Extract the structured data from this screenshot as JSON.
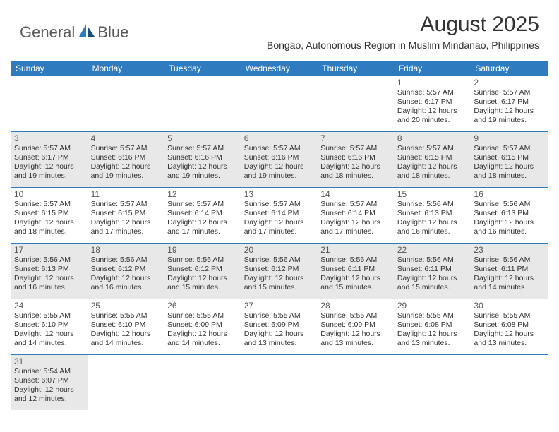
{
  "brand": {
    "name1": "General",
    "name2": "Blue"
  },
  "title": "August 2025",
  "location": "Bongao, Autonomous Region in Muslim Mindanao, Philippines",
  "colors": {
    "header_bg": "#2f7bbf",
    "header_text": "#ffffff",
    "gray_cell": "#e8e8e8",
    "border": "#2f7bbf",
    "body_text": "#333333",
    "logo_text": "#5a5a5a"
  },
  "weekdays": [
    "Sunday",
    "Monday",
    "Tuesday",
    "Wednesday",
    "Thursday",
    "Friday",
    "Saturday"
  ],
  "weeks": [
    [
      null,
      null,
      null,
      null,
      null,
      {
        "n": "1",
        "sr": "Sunrise: 5:57 AM",
        "ss": "Sunset: 6:17 PM",
        "d1": "Daylight: 12 hours",
        "d2": "and 20 minutes."
      },
      {
        "n": "2",
        "sr": "Sunrise: 5:57 AM",
        "ss": "Sunset: 6:17 PM",
        "d1": "Daylight: 12 hours",
        "d2": "and 19 minutes."
      }
    ],
    [
      {
        "n": "3",
        "sr": "Sunrise: 5:57 AM",
        "ss": "Sunset: 6:17 PM",
        "d1": "Daylight: 12 hours",
        "d2": "and 19 minutes."
      },
      {
        "n": "4",
        "sr": "Sunrise: 5:57 AM",
        "ss": "Sunset: 6:16 PM",
        "d1": "Daylight: 12 hours",
        "d2": "and 19 minutes."
      },
      {
        "n": "5",
        "sr": "Sunrise: 5:57 AM",
        "ss": "Sunset: 6:16 PM",
        "d1": "Daylight: 12 hours",
        "d2": "and 19 minutes."
      },
      {
        "n": "6",
        "sr": "Sunrise: 5:57 AM",
        "ss": "Sunset: 6:16 PM",
        "d1": "Daylight: 12 hours",
        "d2": "and 19 minutes."
      },
      {
        "n": "7",
        "sr": "Sunrise: 5:57 AM",
        "ss": "Sunset: 6:16 PM",
        "d1": "Daylight: 12 hours",
        "d2": "and 18 minutes."
      },
      {
        "n": "8",
        "sr": "Sunrise: 5:57 AM",
        "ss": "Sunset: 6:15 PM",
        "d1": "Daylight: 12 hours",
        "d2": "and 18 minutes."
      },
      {
        "n": "9",
        "sr": "Sunrise: 5:57 AM",
        "ss": "Sunset: 6:15 PM",
        "d1": "Daylight: 12 hours",
        "d2": "and 18 minutes."
      }
    ],
    [
      {
        "n": "10",
        "sr": "Sunrise: 5:57 AM",
        "ss": "Sunset: 6:15 PM",
        "d1": "Daylight: 12 hours",
        "d2": "and 18 minutes."
      },
      {
        "n": "11",
        "sr": "Sunrise: 5:57 AM",
        "ss": "Sunset: 6:15 PM",
        "d1": "Daylight: 12 hours",
        "d2": "and 17 minutes."
      },
      {
        "n": "12",
        "sr": "Sunrise: 5:57 AM",
        "ss": "Sunset: 6:14 PM",
        "d1": "Daylight: 12 hours",
        "d2": "and 17 minutes."
      },
      {
        "n": "13",
        "sr": "Sunrise: 5:57 AM",
        "ss": "Sunset: 6:14 PM",
        "d1": "Daylight: 12 hours",
        "d2": "and 17 minutes."
      },
      {
        "n": "14",
        "sr": "Sunrise: 5:57 AM",
        "ss": "Sunset: 6:14 PM",
        "d1": "Daylight: 12 hours",
        "d2": "and 17 minutes."
      },
      {
        "n": "15",
        "sr": "Sunrise: 5:56 AM",
        "ss": "Sunset: 6:13 PM",
        "d1": "Daylight: 12 hours",
        "d2": "and 16 minutes."
      },
      {
        "n": "16",
        "sr": "Sunrise: 5:56 AM",
        "ss": "Sunset: 6:13 PM",
        "d1": "Daylight: 12 hours",
        "d2": "and 16 minutes."
      }
    ],
    [
      {
        "n": "17",
        "sr": "Sunrise: 5:56 AM",
        "ss": "Sunset: 6:13 PM",
        "d1": "Daylight: 12 hours",
        "d2": "and 16 minutes."
      },
      {
        "n": "18",
        "sr": "Sunrise: 5:56 AM",
        "ss": "Sunset: 6:12 PM",
        "d1": "Daylight: 12 hours",
        "d2": "and 16 minutes."
      },
      {
        "n": "19",
        "sr": "Sunrise: 5:56 AM",
        "ss": "Sunset: 6:12 PM",
        "d1": "Daylight: 12 hours",
        "d2": "and 15 minutes."
      },
      {
        "n": "20",
        "sr": "Sunrise: 5:56 AM",
        "ss": "Sunset: 6:12 PM",
        "d1": "Daylight: 12 hours",
        "d2": "and 15 minutes."
      },
      {
        "n": "21",
        "sr": "Sunrise: 5:56 AM",
        "ss": "Sunset: 6:11 PM",
        "d1": "Daylight: 12 hours",
        "d2": "and 15 minutes."
      },
      {
        "n": "22",
        "sr": "Sunrise: 5:56 AM",
        "ss": "Sunset: 6:11 PM",
        "d1": "Daylight: 12 hours",
        "d2": "and 15 minutes."
      },
      {
        "n": "23",
        "sr": "Sunrise: 5:56 AM",
        "ss": "Sunset: 6:11 PM",
        "d1": "Daylight: 12 hours",
        "d2": "and 14 minutes."
      }
    ],
    [
      {
        "n": "24",
        "sr": "Sunrise: 5:55 AM",
        "ss": "Sunset: 6:10 PM",
        "d1": "Daylight: 12 hours",
        "d2": "and 14 minutes."
      },
      {
        "n": "25",
        "sr": "Sunrise: 5:55 AM",
        "ss": "Sunset: 6:10 PM",
        "d1": "Daylight: 12 hours",
        "d2": "and 14 minutes."
      },
      {
        "n": "26",
        "sr": "Sunrise: 5:55 AM",
        "ss": "Sunset: 6:09 PM",
        "d1": "Daylight: 12 hours",
        "d2": "and 14 minutes."
      },
      {
        "n": "27",
        "sr": "Sunrise: 5:55 AM",
        "ss": "Sunset: 6:09 PM",
        "d1": "Daylight: 12 hours",
        "d2": "and 13 minutes."
      },
      {
        "n": "28",
        "sr": "Sunrise: 5:55 AM",
        "ss": "Sunset: 6:09 PM",
        "d1": "Daylight: 12 hours",
        "d2": "and 13 minutes."
      },
      {
        "n": "29",
        "sr": "Sunrise: 5:55 AM",
        "ss": "Sunset: 6:08 PM",
        "d1": "Daylight: 12 hours",
        "d2": "and 13 minutes."
      },
      {
        "n": "30",
        "sr": "Sunrise: 5:55 AM",
        "ss": "Sunset: 6:08 PM",
        "d1": "Daylight: 12 hours",
        "d2": "and 13 minutes."
      }
    ],
    [
      {
        "n": "31",
        "sr": "Sunrise: 5:54 AM",
        "ss": "Sunset: 6:07 PM",
        "d1": "Daylight: 12 hours",
        "d2": "and 12 minutes."
      },
      null,
      null,
      null,
      null,
      null,
      null
    ]
  ]
}
